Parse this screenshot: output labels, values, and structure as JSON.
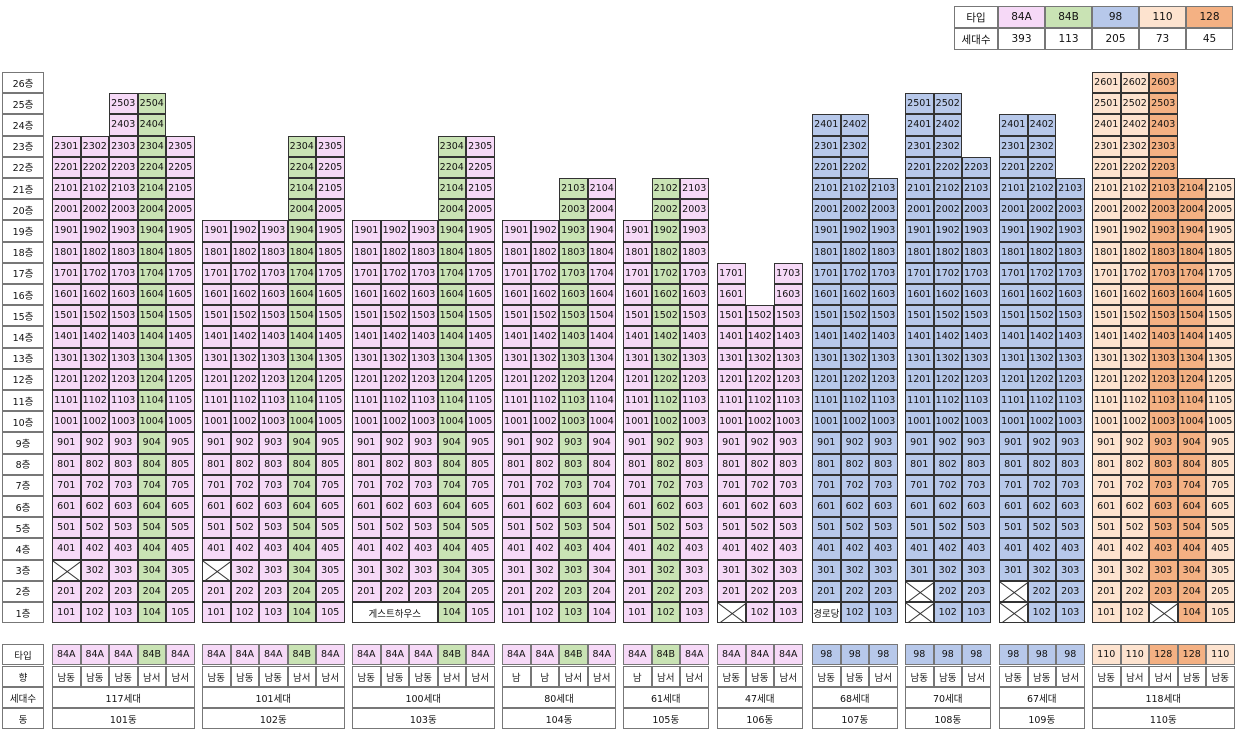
{
  "legend": {
    "header": "타입",
    "count_label": "세대수",
    "types": [
      {
        "name": "84A",
        "count": "393",
        "color": "#f6d9f7"
      },
      {
        "name": "84B",
        "count": "113",
        "color": "#c9e3b4"
      },
      {
        "name": "98",
        "count": "205",
        "color": "#b7c8ea"
      },
      {
        "name": "110",
        "count": "73",
        "color": "#fde3cf"
      },
      {
        "name": "128",
        "count": "45",
        "color": "#f4b183"
      }
    ]
  },
  "colors": {
    "84A": "#f6d9f7",
    "84B": "#c9e3b4",
    "98": "#b7c8ea",
    "110": "#fde3cf",
    "128": "#f4b183",
    "none": "#ffffff"
  },
  "floor_suffix": "층",
  "bottom_labels": {
    "type": "타입",
    "direction": "향",
    "households": "세대수",
    "building": "동"
  },
  "buildings": [
    {
      "name": "101동",
      "households": "117세대",
      "lines": 5,
      "floors": [
        23,
        23,
        25,
        25,
        23
      ],
      "types": [
        "84A",
        "84A",
        "84A",
        "84B",
        "84A"
      ],
      "dirs": [
        "남동",
        "남동",
        "남동",
        "남서",
        "남서"
      ],
      "missing": {
        "3": [
          1
        ]
      },
      "special": {}
    },
    {
      "name": "102동",
      "households": "101세대",
      "lines": 5,
      "floors": [
        19,
        19,
        19,
        23,
        23
      ],
      "types": [
        "84A",
        "84A",
        "84A",
        "84B",
        "84A"
      ],
      "dirs": [
        "남동",
        "남동",
        "남동",
        "남서",
        "남서"
      ],
      "missing": {
        "3": [
          1
        ]
      },
      "special": {}
    },
    {
      "name": "103동",
      "households": "100세대",
      "lines": 5,
      "floors": [
        19,
        19,
        19,
        23,
        23
      ],
      "types": [
        "84A",
        "84A",
        "84A",
        "84B",
        "84A"
      ],
      "dirs": [
        "남동",
        "남동",
        "남동",
        "남서",
        "남서"
      ],
      "missing": {},
      "special": {
        "1": {
          "span": [
            1,
            3
          ],
          "label": "게스트하우스"
        }
      }
    },
    {
      "name": "104동",
      "households": "80세대",
      "lines": 4,
      "floors": [
        19,
        19,
        21,
        21
      ],
      "types": [
        "84A",
        "84A",
        "84B",
        "84A"
      ],
      "dirs": [
        "남",
        "남",
        "남서",
        "남서"
      ],
      "missing": {},
      "special": {}
    },
    {
      "name": "105동",
      "households": "61세대",
      "lines": 3,
      "floors": [
        19,
        21,
        21
      ],
      "types": [
        "84A",
        "84B",
        "84A"
      ],
      "dirs": [
        "남",
        "남서",
        "남서"
      ],
      "missing": {},
      "special": {}
    },
    {
      "name": "106동",
      "households": "47세대",
      "lines": 3,
      "floors": [
        17,
        15,
        17
      ],
      "types": [
        "84A",
        "84A",
        "84A"
      ],
      "dirs": [
        "남동",
        "남동",
        "남서"
      ],
      "missing": {
        "1": [
          1
        ]
      },
      "special": {}
    },
    {
      "name": "107동",
      "households": "68세대",
      "lines": 3,
      "floors": [
        24,
        24,
        21
      ],
      "types": [
        "98",
        "98",
        "98"
      ],
      "dirs": [
        "남동",
        "남동",
        "남서"
      ],
      "missing": {},
      "special": {
        "1": {
          "span": [
            1,
            1
          ],
          "label": "경로당"
        }
      }
    },
    {
      "name": "108동",
      "households": "70세대",
      "lines": 3,
      "floors": [
        25,
        25,
        22
      ],
      "types": [
        "98",
        "98",
        "98"
      ],
      "dirs": [
        "남동",
        "남동",
        "남서"
      ],
      "missing": {
        "2": [
          1
        ],
        "1": [
          1
        ]
      },
      "special": {}
    },
    {
      "name": "109동",
      "households": "67세대",
      "lines": 3,
      "floors": [
        24,
        24,
        21
      ],
      "types": [
        "98",
        "98",
        "98"
      ],
      "dirs": [
        "남동",
        "남동",
        "남서"
      ],
      "missing": {
        "2": [
          1
        ],
        "1": [
          1
        ]
      },
      "special": {}
    },
    {
      "name": "110동",
      "households": "118세대",
      "lines": 5,
      "floors": [
        26,
        26,
        26,
        21,
        21
      ],
      "types": [
        "110",
        "110",
        "128",
        "128",
        "110"
      ],
      "dirs": [
        "남동",
        "남서",
        "남서",
        "남동",
        "남동"
      ],
      "missing": {
        "1": [
          3
        ]
      },
      "special": {}
    }
  ]
}
